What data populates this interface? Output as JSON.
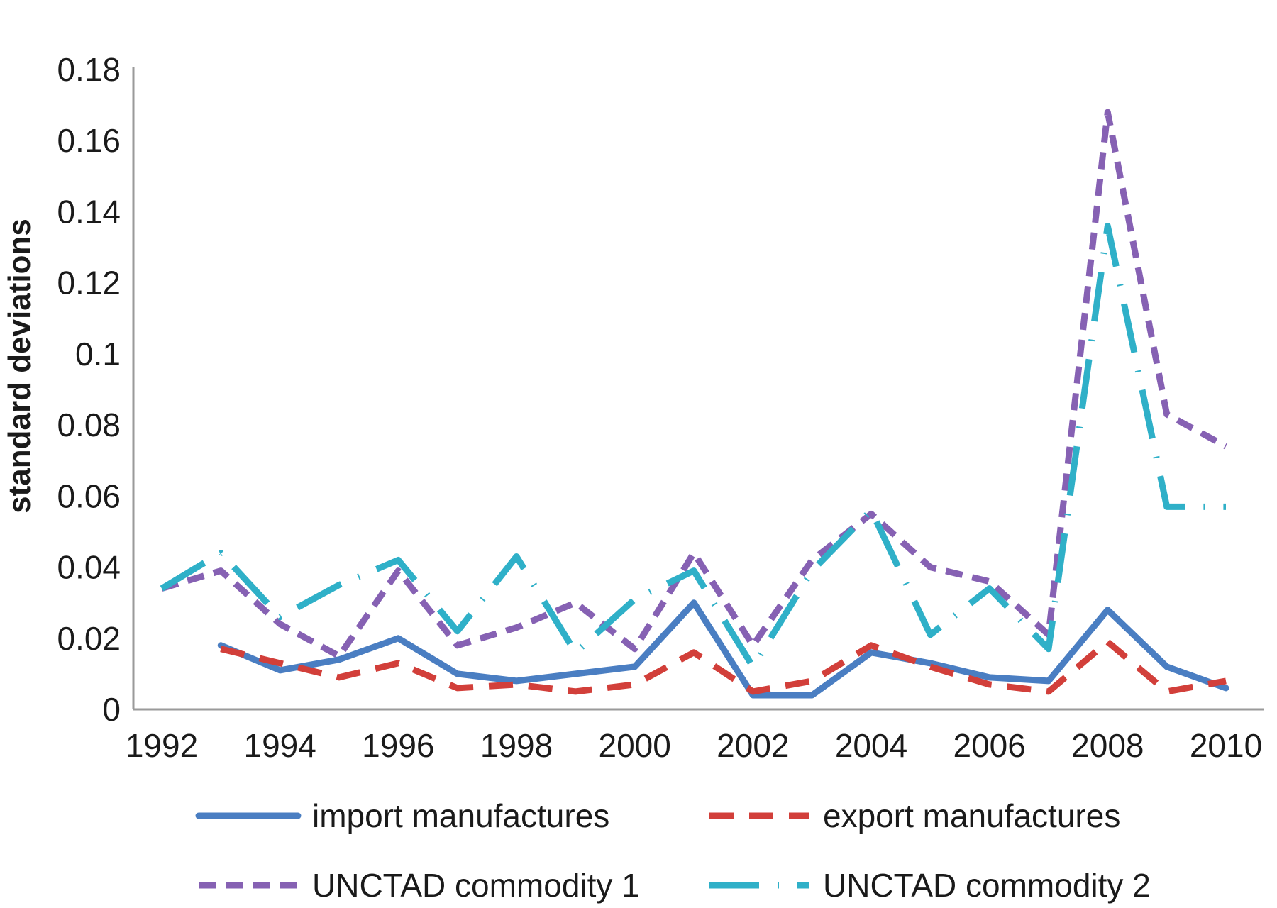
{
  "chart_data": {
    "type": "line",
    "title": "",
    "xlabel": "",
    "ylabel": "standard deviations",
    "x": [
      1992,
      1993,
      1994,
      1995,
      1996,
      1997,
      1998,
      1999,
      2000,
      2001,
      2002,
      2003,
      2004,
      2005,
      2006,
      2007,
      2008,
      2009,
      2010
    ],
    "x_ticks": [
      "1992",
      "1994",
      "1996",
      "1998",
      "2000",
      "2002",
      "2004",
      "2006",
      "2008",
      "2010"
    ],
    "y_ticks": [
      "0",
      "0.02",
      "0.04",
      "0.06",
      "0.08",
      "0.1",
      "0.12",
      "0.14",
      "0.16",
      "0.18"
    ],
    "ylim": [
      0,
      0.18
    ],
    "xlim": [
      1992,
      2010
    ],
    "grid": false,
    "legend_position": "bottom",
    "series": [
      {
        "name": "import manufactures",
        "color": "#4a7ec2",
        "style": "solid",
        "values": [
          null,
          0.018,
          0.011,
          0.014,
          0.02,
          0.01,
          0.008,
          0.01,
          0.012,
          0.03,
          0.004,
          0.004,
          0.016,
          0.013,
          0.009,
          0.008,
          0.028,
          0.012,
          0.006
        ]
      },
      {
        "name": "export manufactures",
        "color": "#d23f3a",
        "style": "dashed",
        "values": [
          null,
          0.017,
          0.013,
          0.009,
          0.013,
          0.006,
          0.007,
          0.005,
          0.007,
          0.016,
          0.005,
          0.008,
          0.018,
          0.012,
          0.007,
          0.005,
          0.019,
          0.005,
          0.008
        ]
      },
      {
        "name": "UNCTAD commodity 1",
        "color": "#8661b3",
        "style": "short-dash",
        "values": [
          0.034,
          0.039,
          0.024,
          0.015,
          0.039,
          0.018,
          0.023,
          0.03,
          0.017,
          0.044,
          0.018,
          0.042,
          0.055,
          0.04,
          0.036,
          0.021,
          0.168,
          0.083,
          0.074
        ]
      },
      {
        "name": "UNCTAD commodity 2",
        "color": "#2fb0c8",
        "style": "long-dash-dot",
        "values": [
          0.034,
          0.044,
          0.026,
          0.035,
          0.042,
          0.022,
          0.043,
          0.016,
          0.031,
          0.039,
          0.012,
          0.039,
          0.056,
          0.021,
          0.034,
          0.017,
          0.136,
          0.057,
          0.057
        ]
      }
    ]
  }
}
